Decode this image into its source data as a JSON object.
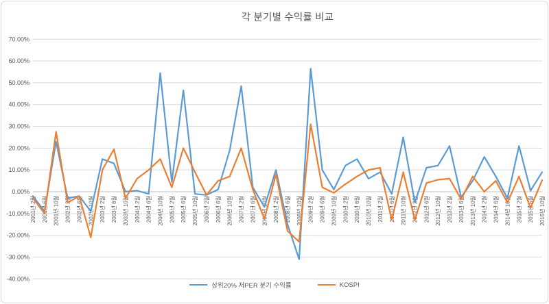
{
  "window": {
    "background": "#FFFFFF",
    "border_color": "#D9D9D9"
  },
  "chart_data": {
    "type": "line",
    "title": "각 분기별 수익률 비교",
    "title_color": "#595959",
    "grid": true,
    "gridline_color": "#D9D9D9",
    "zero_line_color": "#BFBFBF",
    "axis_label_color": "#595959",
    "legend_position": "bottom",
    "categories": [
      "2001년 2월",
      "2001년 6월",
      "2001년 10월",
      "2002년 2월",
      "2002년 6월",
      "2002년 10월",
      "2003년 2월",
      "2003년 6월",
      "2003년 10월",
      "2004년 2월",
      "2004년 6월",
      "2004년 10월",
      "2005년 2월",
      "2005년 6월",
      "2005년 10월",
      "2006년 2월",
      "2006년 6월",
      "2006년 10월",
      "2007년 2월",
      "2007년 6월",
      "2007년 10월",
      "2008년 2월",
      "2008년 6월",
      "2008년 10월",
      "2009년 2월",
      "2009년 6월",
      "2009년 10월",
      "2010년 2월",
      "2010년 6월",
      "2010년 10월",
      "2011년 2월",
      "2011년 6월",
      "2011년 10월",
      "2012년 2월",
      "2012년 6월",
      "2012년 10월",
      "2013년 2월",
      "2013년 6월",
      "2013년 10월",
      "2014년 2월",
      "2014년 6월",
      "2014년 10월",
      "2015년 2월",
      "2015년 6월",
      "2015년 10월"
    ],
    "series": [
      {
        "name": "상위20% 저PER 분기 수익률",
        "color": "#5B9BD5",
        "values": [
          -2,
          -9,
          23,
          -3,
          -2,
          -9,
          15,
          13,
          0,
          0.5,
          -1,
          54.5,
          4.5,
          46.5,
          -1,
          -1.5,
          1,
          19,
          48.5,
          2,
          -7,
          10,
          -15,
          -31,
          56.5,
          10,
          1,
          12,
          15,
          6,
          9,
          -1,
          25,
          -5,
          11,
          12,
          21,
          -2.5,
          5,
          16,
          7,
          -3,
          21,
          0.5,
          9
        ]
      },
      {
        "name": "KOSPI",
        "color": "#ED7D31",
        "values": [
          -3,
          -10,
          27.5,
          -5,
          -2,
          -21,
          10,
          19.5,
          -3,
          6,
          10,
          15,
          2,
          20,
          9,
          -1.5,
          5,
          7,
          20,
          1,
          -12.5,
          8,
          -18,
          -23,
          31,
          2,
          -0.5,
          3.5,
          7,
          10,
          11,
          -13,
          9,
          -13,
          4,
          5.5,
          6,
          -3.5,
          7,
          0,
          5,
          -5,
          7,
          -7.5,
          5.3
        ]
      }
    ],
    "y_axis": {
      "min": -40,
      "max": 70,
      "step": 10,
      "tick_values": [
        70,
        60,
        50,
        40,
        30,
        20,
        10,
        0,
        -10,
        -20,
        -30,
        -40
      ],
      "tick_labels": [
        "70.00%",
        "60.00%",
        "50.00%",
        "40.00%",
        "30.00%",
        "20.00%",
        "10.00%",
        "0.00%",
        "-10.00%",
        "-20.00%",
        "-30.00%",
        "-40.00%"
      ]
    }
  }
}
